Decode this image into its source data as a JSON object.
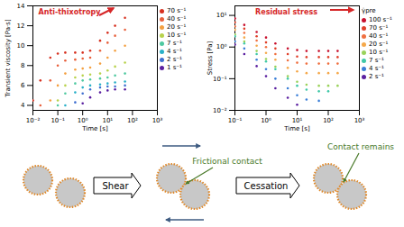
{
  "chart_data": [
    {
      "type": "scatter",
      "annotation": {
        "text": "Anti-thixotropy",
        "color": "#d62728"
      },
      "x_label": "Time [s]",
      "y_label": "Transient viscosity [Pa·s]",
      "log": "x",
      "grid": false,
      "legend": "right",
      "xlim": [
        0.01,
        1000
      ],
      "xticks": [
        {
          "value": 0.01,
          "label": "10⁻²"
        },
        {
          "value": 0.1,
          "label": "10⁻¹"
        },
        {
          "value": 1,
          "label": "10⁰"
        },
        {
          "value": 10,
          "label": "10¹"
        },
        {
          "value": 100,
          "label": "10²"
        },
        {
          "value": 1000,
          "label": "10³"
        }
      ],
      "ylim": [
        3.5,
        14
      ],
      "yticks": [
        4,
        6,
        8,
        10,
        12,
        14
      ],
      "x": [
        0.01,
        0.02,
        0.05,
        0.1,
        0.2,
        0.5,
        1,
        2,
        5,
        10,
        20,
        50
      ],
      "series": [
        {
          "name": "70 s⁻¹",
          "color": "#d7301f",
          "values": [
            4.5,
            6.5,
            8.8,
            9.2,
            9.3,
            9.3,
            9.3,
            9.5,
            10.5,
            11.3,
            12,
            12.8
          ]
        },
        {
          "name": "40 s⁻¹",
          "color": "#e8603c",
          "values": [
            null,
            4,
            6.5,
            8,
            8.5,
            8.6,
            8.7,
            8.8,
            9.5,
            10.3,
            11,
            11.6
          ]
        },
        {
          "name": "20 s⁻¹",
          "color": "#f4a040",
          "values": [
            null,
            null,
            4.5,
            6,
            7.2,
            7.6,
            7.7,
            7.8,
            8.2,
            8.8,
            9.5,
            10
          ]
        },
        {
          "name": "10 s⁻¹",
          "color": "#b8d24c",
          "values": [
            null,
            null,
            null,
            4.5,
            6,
            6.8,
            7,
            7.1,
            7.2,
            7.5,
            7.9,
            8.3
          ]
        },
        {
          "name": "7 s⁻¹",
          "color": "#4fc9a0",
          "values": [
            null,
            null,
            null,
            4,
            5.2,
            6.2,
            6.5,
            6.6,
            6.7,
            6.8,
            7,
            7.2
          ]
        },
        {
          "name": "4 s⁻¹",
          "color": "#2ab0c8",
          "values": [
            null,
            null,
            null,
            null,
            4,
            5.3,
            5.8,
            6,
            6.1,
            6.2,
            6.3,
            6.4
          ]
        },
        {
          "name": "2 s⁻¹",
          "color": "#3f6fd0",
          "values": [
            null,
            null,
            null,
            null,
            null,
            4.3,
            5.2,
            5.6,
            5.8,
            5.9,
            5.9,
            6
          ]
        },
        {
          "name": "1 s⁻¹",
          "color": "#5a1fa0",
          "values": [
            null,
            null,
            null,
            null,
            null,
            null,
            4.2,
            4.8,
            5.3,
            5.5,
            5.6,
            5.6
          ]
        }
      ]
    },
    {
      "type": "scatter",
      "annotation": {
        "text": "Residual stress",
        "color": "#d62728"
      },
      "x_label": "Time [s]",
      "y_label": "Stress [Pa]",
      "legend_title": "γ̇pre",
      "log": true,
      "grid": false,
      "legend": "right",
      "xlim": [
        0.1,
        1000
      ],
      "xticks": [
        {
          "value": 0.1,
          "label": "10⁻¹"
        },
        {
          "value": 1,
          "label": "10⁰"
        },
        {
          "value": 10,
          "label": "10¹"
        },
        {
          "value": 100,
          "label": "10²"
        },
        {
          "value": 1000,
          "label": "10³"
        }
      ],
      "ylim": [
        0.01,
        20
      ],
      "yticks": [
        {
          "value": 0.01,
          "label": "10⁻²"
        },
        {
          "value": 0.1,
          "label": "10⁻¹"
        },
        {
          "value": 1,
          "label": "10⁰"
        },
        {
          "value": 10,
          "label": "10¹"
        }
      ],
      "x": [
        0.1,
        0.2,
        0.5,
        1,
        2,
        5,
        10,
        20,
        50,
        100,
        200
      ],
      "series": [
        {
          "name": "100 s⁻¹",
          "color": "#c8102e",
          "values": [
            8,
            5,
            3,
            2,
            1.3,
            0.9,
            0.8,
            0.75,
            0.75,
            0.75,
            0.75
          ]
        },
        {
          "name": "70 s⁻¹",
          "color": "#e0402a",
          "values": [
            6,
            3.8,
            2.2,
            1.4,
            0.9,
            0.6,
            0.5,
            0.48,
            0.48,
            0.48,
            0.48
          ]
        },
        {
          "name": "40 s⁻¹",
          "color": "#f07040",
          "values": [
            4.5,
            2.8,
            1.6,
            1,
            0.6,
            0.38,
            0.32,
            0.3,
            0.3,
            0.3,
            0.3
          ]
        },
        {
          "name": "20 s⁻¹",
          "color": "#f5a84a",
          "values": [
            3.5,
            2,
            1.1,
            0.65,
            0.4,
            0.22,
            0.17,
            0.15,
            0.15,
            0.15,
            0.15
          ]
        },
        {
          "name": "10 s⁻¹",
          "color": "#9ad25a",
          "values": [
            2.5,
            1.5,
            0.75,
            0.42,
            0.24,
            0.12,
            0.08,
            0.065,
            0.06,
            0.06,
            0.06
          ]
        },
        {
          "name": "7 s⁻¹",
          "color": "#40c8a8",
          "values": [
            2.2,
            1.3,
            0.6,
            0.35,
            0.2,
            0.1,
            0.06,
            0.045,
            0.04,
            0.04,
            null
          ]
        },
        {
          "name": "4 s⁻¹",
          "color": "#3b7fd8",
          "values": [
            1.5,
            0.9,
            0.4,
            0.2,
            0.1,
            0.05,
            0.03,
            0.022,
            0.02,
            null,
            null
          ]
        },
        {
          "name": "2 s⁻¹",
          "color": "#5a1fa0",
          "values": [
            1.2,
            0.6,
            0.25,
            0.12,
            0.05,
            0.025,
            0.015,
            null,
            null,
            null,
            null
          ]
        }
      ]
    }
  ],
  "diagram": {
    "arrows": [
      "Shear",
      "Cessation"
    ],
    "labels": [
      "Frictional contact",
      "Contact remains"
    ]
  }
}
